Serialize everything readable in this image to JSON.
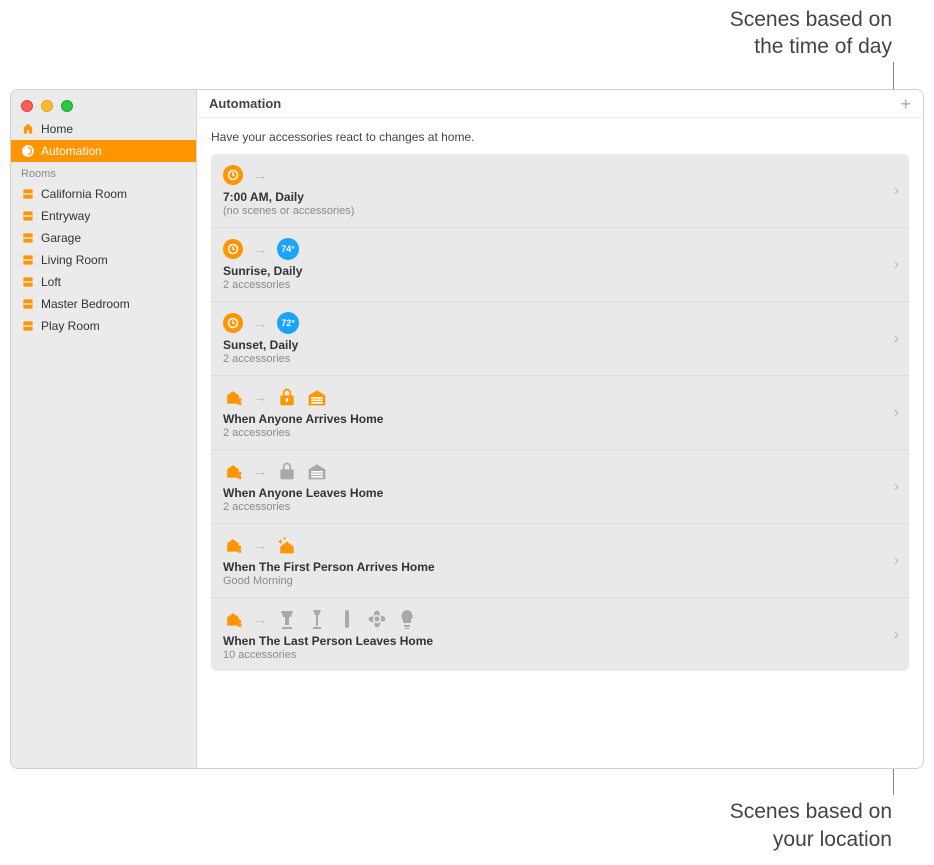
{
  "callouts": {
    "top_l1": "Scenes based on",
    "top_l2": "the time of day",
    "bottom_l1": "Scenes based on",
    "bottom_l2": "your location"
  },
  "window": {
    "title": "Automation",
    "subtitle": "Have your accessories react to changes at home."
  },
  "sidebar": {
    "top": [
      {
        "label": "Home",
        "icon": "home"
      },
      {
        "label": "Automation",
        "icon": "bubble",
        "active": true
      }
    ],
    "section_label": "Rooms",
    "rooms": [
      {
        "label": "California Room"
      },
      {
        "label": "Entryway"
      },
      {
        "label": "Garage"
      },
      {
        "label": "Living Room"
      },
      {
        "label": "Loft"
      },
      {
        "label": "Master Bedroom"
      },
      {
        "label": "Play Room"
      }
    ]
  },
  "colors": {
    "accent": "#ff9500",
    "badge": "#1aa3ff",
    "row_bg": "#e9e9e9",
    "sidebar_bg": "#ebebeb",
    "muted_text": "#8a8a8a",
    "icon_gray": "#a9a9a9",
    "divider": "#dddddd"
  },
  "automations": [
    {
      "trigger_icon": "clock",
      "badge": null,
      "accessory_icons": [],
      "title": "7:00 AM, Daily",
      "sub": "(no scenes or accessories)"
    },
    {
      "trigger_icon": "clock",
      "badge": "74°",
      "accessory_icons": [],
      "title": "Sunrise, Daily",
      "sub": "2 accessories"
    },
    {
      "trigger_icon": "clock",
      "badge": "72°",
      "accessory_icons": [],
      "title": "Sunset, Daily",
      "sub": "2 accessories"
    },
    {
      "trigger_icon": "house-person",
      "badge": null,
      "accessory_icons": [
        "unlock-orange",
        "garage-orange"
      ],
      "title": "When Anyone Arrives Home",
      "sub": "2 accessories"
    },
    {
      "trigger_icon": "house-person",
      "badge": null,
      "accessory_icons": [
        "lock-gray",
        "garage-gray"
      ],
      "title": "When Anyone Leaves Home",
      "sub": "2 accessories"
    },
    {
      "trigger_icon": "house-person",
      "badge": null,
      "accessory_icons": [
        "sparkle-house"
      ],
      "title": "When The First Person Arrives Home",
      "sub": "Good Morning"
    },
    {
      "trigger_icon": "house-person",
      "badge": null,
      "accessory_icons": [
        "lamp",
        "floor-lamp",
        "bar",
        "fan",
        "bulb"
      ],
      "title": "When The Last Person Leaves Home",
      "sub": "10 accessories"
    }
  ]
}
